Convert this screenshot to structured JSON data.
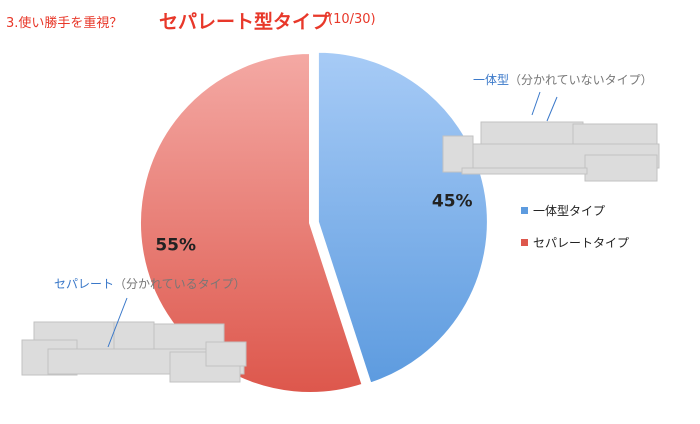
{
  "header": {
    "prefix": "3.使い勝手を重視？",
    "main_title": "セパレート型タイプ",
    "count": "(10/30)"
  },
  "colors": {
    "title": "#e8382a",
    "blue_light": "#a7cbf6",
    "blue_dark": "#5d9bdf",
    "red_light": "#f4a9a4",
    "red_dark": "#dd574c",
    "annotation_blue": "#3a78c9",
    "sofa_gray": "#dcdcdc"
  },
  "chart_data": {
    "type": "pie",
    "slices": [
      {
        "label": "一体型タイプ",
        "value": 45,
        "data_label": "45%",
        "color": "#5d9bdf"
      },
      {
        "label": "セパレートタイプ",
        "value": 55,
        "data_label": "55%",
        "color": "#dd574c"
      }
    ],
    "legend_position": "right",
    "exploded_slice": "一体型タイプ"
  },
  "annotations": {
    "blue": {
      "highlight": "一体型",
      "rest": "（分かれていないタイプ）"
    },
    "red": {
      "highlight": "セパレート",
      "rest": "（分かれているタイプ）"
    }
  },
  "images": [
    "sofa-one-piece",
    "sofa-separate"
  ]
}
